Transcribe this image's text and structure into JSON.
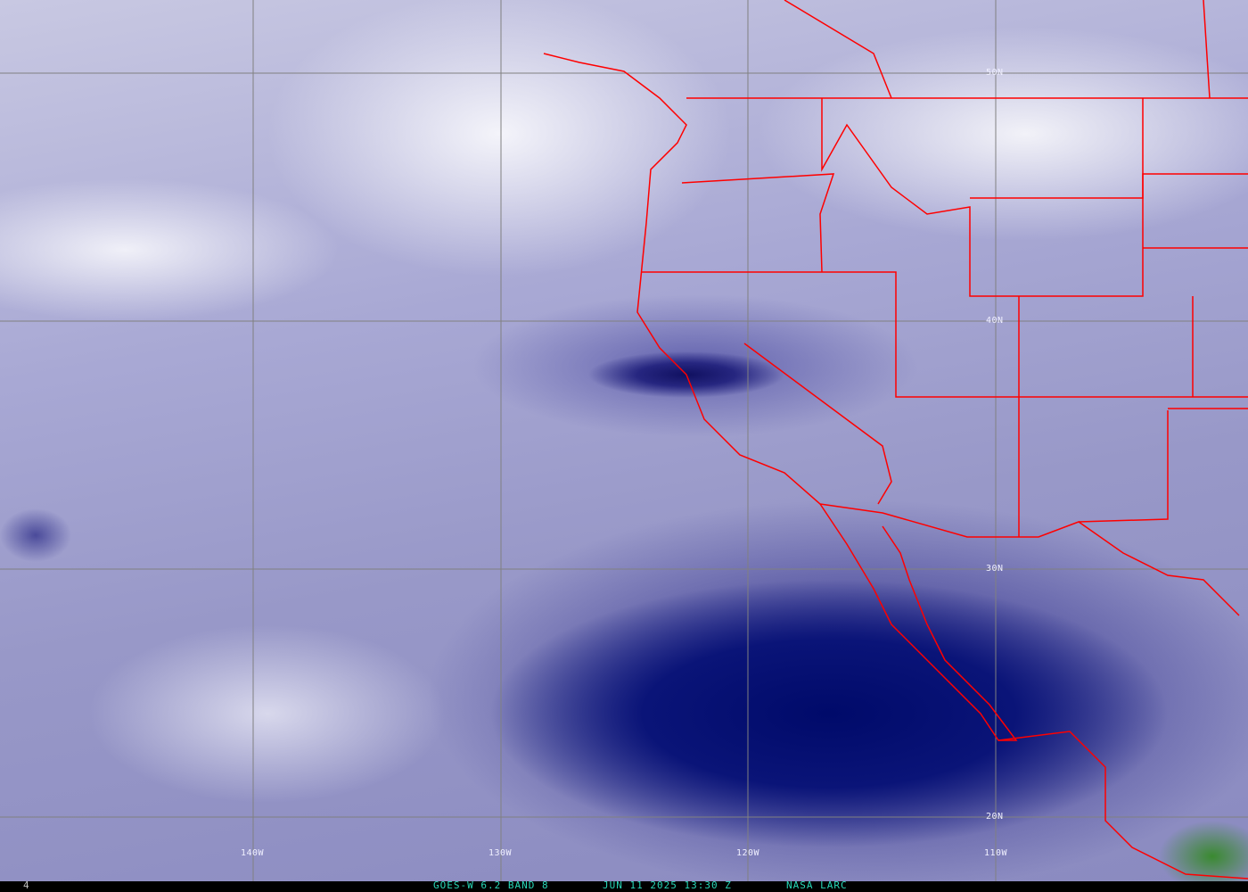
{
  "map": {
    "type": "satellite water vapor imagery",
    "lon_labels": [
      "140W",
      "130W",
      "120W",
      "110W"
    ],
    "lat_labels": [
      "50N",
      "40N",
      "30N",
      "20N"
    ],
    "colors": {
      "border": "#ff0000",
      "grid": "#808080",
      "caption": "#28d8b8"
    }
  },
  "footer": {
    "frame": "4",
    "satellite": "GOES-W 6.2 BAND 8",
    "datetime": "JUN 11 2025 13:30 Z",
    "source": "NASA LARC"
  }
}
